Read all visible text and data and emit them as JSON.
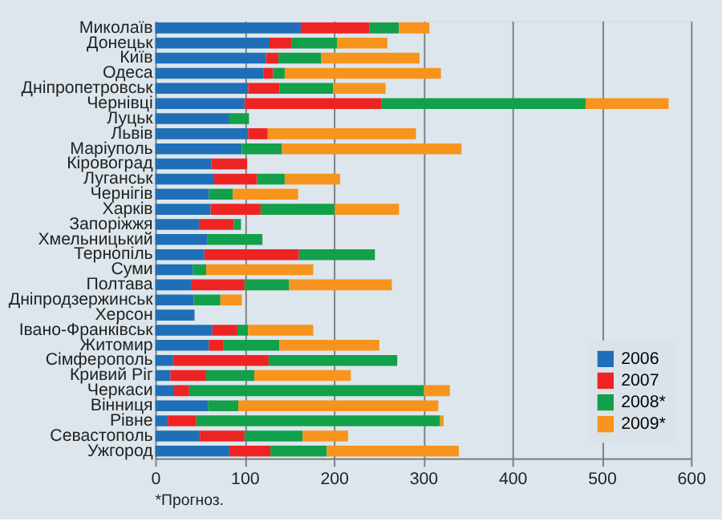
{
  "chart_data": {
    "type": "bar",
    "orientation": "horizontal",
    "stacked": true,
    "categories": [
      "Миколаїв",
      "Донецьк",
      "Київ",
      "Одеса",
      "Дніпропетровськ",
      "Чернівці",
      "Луцьк",
      "Львів",
      "Маріуполь",
      "Кіровоград",
      "Луганськ",
      "Чернігів",
      "Харків",
      "Запоріжжя",
      "Хмельницький",
      "Тернопіль",
      "Суми",
      "Полтава",
      "Дніпродзержинськ",
      "Херсон",
      "Івано-Франківськ",
      "Житомир",
      "Сімферополь",
      "Кривий Ріг",
      "Черкаси",
      "Вінниця",
      "Рівне",
      "Севастополь",
      "Ужгород"
    ],
    "series": [
      {
        "name": "2006",
        "color": "#1f6fb8",
        "values": [
          163,
          128,
          124,
          121,
          104,
          100,
          83,
          104,
          97,
          63,
          66,
          60,
          62,
          49,
          58,
          55,
          42,
          40,
          43,
          44,
          64,
          60,
          20,
          17,
          21,
          59,
          14,
          50,
          83
        ]
      },
      {
        "name": "2007",
        "color": "#ee2424",
        "values": [
          77,
          25,
          14,
          11,
          35,
          153,
          0,
          22,
          0,
          40,
          48,
          0,
          56,
          39,
          0,
          106,
          0,
          60,
          0,
          0,
          28,
          16,
          107,
          40,
          17,
          0,
          32,
          50,
          46
        ]
      },
      {
        "name": "2008*",
        "color": "#13a04a",
        "values": [
          33,
          51,
          48,
          13,
          60,
          229,
          22,
          0,
          45,
          0,
          31,
          27,
          83,
          8,
          62,
          85,
          15,
          50,
          30,
          0,
          12,
          63,
          144,
          54,
          263,
          34,
          273,
          65,
          63
        ]
      },
      {
        "name": "2009*",
        "color": "#f7941d",
        "values": [
          34,
          56,
          110,
          175,
          59,
          93,
          0,
          166,
          201,
          0,
          62,
          73,
          72,
          0,
          0,
          0,
          120,
          115,
          24,
          0,
          73,
          112,
          0,
          108,
          29,
          224,
          4,
          51,
          148
        ]
      }
    ],
    "xlim": [
      0,
      600
    ],
    "xticks": [
      0,
      100,
      200,
      300,
      400,
      500,
      600
    ],
    "grid": "x",
    "legend": "bottom right",
    "annotations": [
      "*Прогноз."
    ]
  }
}
